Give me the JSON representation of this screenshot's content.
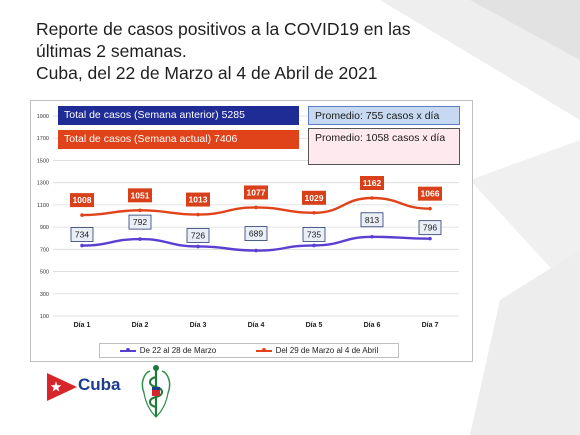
{
  "title": {
    "line1": "Reporte de casos positivos  a la COVID19 en las",
    "line2": "últimas 2 semanas.",
    "line3": "Cuba, del 22  de Marzo al 4 de Abril de 2021"
  },
  "summary": {
    "prev_total": "Total de casos (Semana anterior) 5285",
    "curr_total": "Total de casos (Semana actual) 7406",
    "prev_avg": "Promedio: 755 casos x día",
    "curr_avg": "Promedio: 1058 casos x día"
  },
  "logo": {
    "text": "Cuba"
  },
  "colors": {
    "prev_series": "#5b3fd1",
    "curr_series": "#e0431a",
    "prev_box": "#1f2c96",
    "curr_box": "#e0431a"
  },
  "chart_data": {
    "type": "line",
    "categories": [
      "Día 1",
      "Día 2",
      "Día 3",
      "Día 4",
      "Día 5",
      "Día 6",
      "Día 7"
    ],
    "y_ticks": [
      "100",
      "300",
      "500",
      "700",
      "900",
      "1100",
      "1300",
      "1500",
      "1700",
      "1900"
    ],
    "ylim": [
      100,
      1900
    ],
    "grid": true,
    "legend_position": "bottom",
    "series": [
      {
        "name": "De 22 al 28 de Marzo",
        "values": [
          734,
          792,
          726,
          689,
          735,
          813,
          796
        ],
        "labels": [
          "734",
          "792",
          "726",
          "689",
          "735",
          "813",
          "796"
        ]
      },
      {
        "name": "Del 29 de Marzo al 4  de Abril",
        "values": [
          1008,
          1051,
          1013,
          1077,
          1029,
          1162,
          1066
        ],
        "labels": [
          "1008",
          "1051",
          "1013",
          "1077",
          "1029",
          "1162",
          "1066"
        ]
      }
    ]
  }
}
